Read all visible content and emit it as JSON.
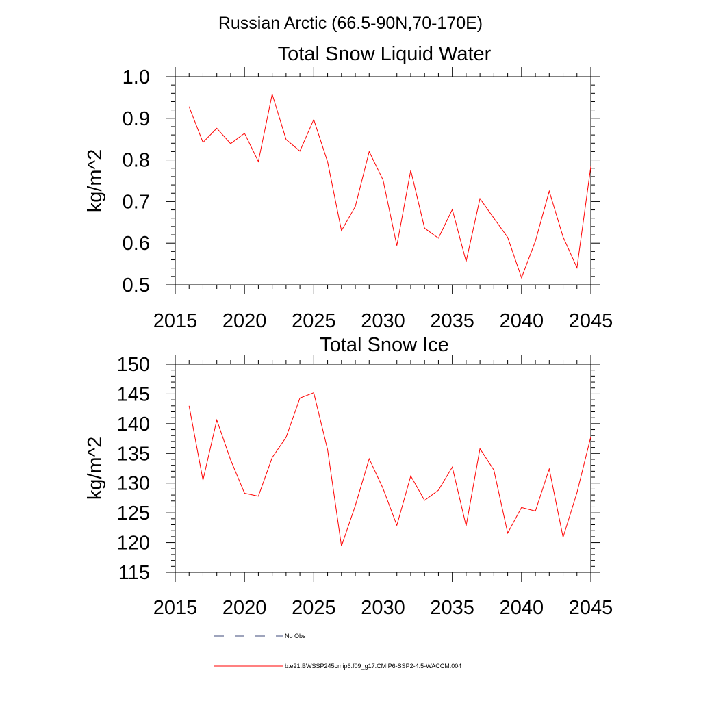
{
  "suptitle": "Russian Arctic (66.5-90N,70-170E)",
  "colors": {
    "model_line": "#ff0000",
    "obs_line": "#3d4a7a",
    "axis": "#000000"
  },
  "chart_data": [
    {
      "type": "line",
      "title": "Total Snow Liquid Water",
      "xlabel": "",
      "ylabel": "kg/m^2",
      "xlim": [
        2015,
        2045
      ],
      "ylim": [
        0.5,
        1.0
      ],
      "xticks": [
        2015,
        2020,
        2025,
        2030,
        2035,
        2040,
        2045
      ],
      "xtick_labels": [
        "2015",
        "2020",
        "2025",
        "2030",
        "2035",
        "2040",
        "2045"
      ],
      "yticks": [
        0.5,
        0.6,
        0.7,
        0.8,
        0.9,
        1.0
      ],
      "ytick_labels": [
        "0.5",
        "0.6",
        "0.7",
        "0.8",
        "0.9",
        "1.0"
      ],
      "x": [
        2016,
        2017,
        2018,
        2019,
        2020,
        2021,
        2022,
        2023,
        2024,
        2025,
        2026,
        2027,
        2028,
        2029,
        2030,
        2031,
        2032,
        2033,
        2034,
        2035,
        2036,
        2037,
        2038,
        2039,
        2040,
        2041,
        2042,
        2043,
        2044,
        2045
      ],
      "series": [
        {
          "name": "b.e21.BWSSP245cmip6.f09_g17.CMIP6-SSP2-4.5-WACCM.004",
          "values": [
            0.928,
            0.842,
            0.876,
            0.839,
            0.864,
            0.796,
            0.958,
            0.849,
            0.821,
            0.897,
            0.795,
            0.63,
            0.688,
            0.82,
            0.752,
            0.594,
            0.775,
            0.636,
            0.612,
            0.681,
            0.556,
            0.707,
            0.66,
            0.614,
            0.517,
            0.605,
            0.725,
            0.615,
            0.541,
            0.784
          ]
        }
      ]
    },
    {
      "type": "line",
      "title": "Total Snow Ice",
      "xlabel": "",
      "ylabel": "kg/m^2",
      "xlim": [
        2015,
        2045
      ],
      "ylim": [
        115,
        150
      ],
      "xticks": [
        2015,
        2020,
        2025,
        2030,
        2035,
        2040,
        2045
      ],
      "xtick_labels": [
        "2015",
        "2020",
        "2025",
        "2030",
        "2035",
        "2040",
        "2045"
      ],
      "yticks": [
        115,
        120,
        125,
        130,
        135,
        140,
        145,
        150
      ],
      "ytick_labels": [
        "115",
        "120",
        "125",
        "130",
        "135",
        "140",
        "145",
        "150"
      ],
      "x": [
        2016,
        2017,
        2018,
        2019,
        2020,
        2021,
        2022,
        2023,
        2024,
        2025,
        2026,
        2027,
        2028,
        2029,
        2030,
        2031,
        2032,
        2033,
        2034,
        2035,
        2036,
        2037,
        2038,
        2039,
        2040,
        2041,
        2042,
        2043,
        2044,
        2045
      ],
      "series": [
        {
          "name": "b.e21.BWSSP245cmip6.f09_g17.CMIP6-SSP2-4.5-WACCM.004",
          "values": [
            143.0,
            130.5,
            140.6,
            133.9,
            128.3,
            127.8,
            134.3,
            137.7,
            144.3,
            145.2,
            135.6,
            119.4,
            126.2,
            134.1,
            129.1,
            122.9,
            131.2,
            127.1,
            128.8,
            132.7,
            122.8,
            135.8,
            132.2,
            121.6,
            125.9,
            125.3,
            132.4,
            120.9,
            128.4,
            137.8
          ]
        }
      ]
    }
  ],
  "legend": [
    {
      "label": "No Obs",
      "style": "dashed"
    },
    {
      "label": "b.e21.BWSSP245cmip6.f09_g17.CMIP6-SSP2-4.5-WACCM.004",
      "style": "solid"
    }
  ]
}
